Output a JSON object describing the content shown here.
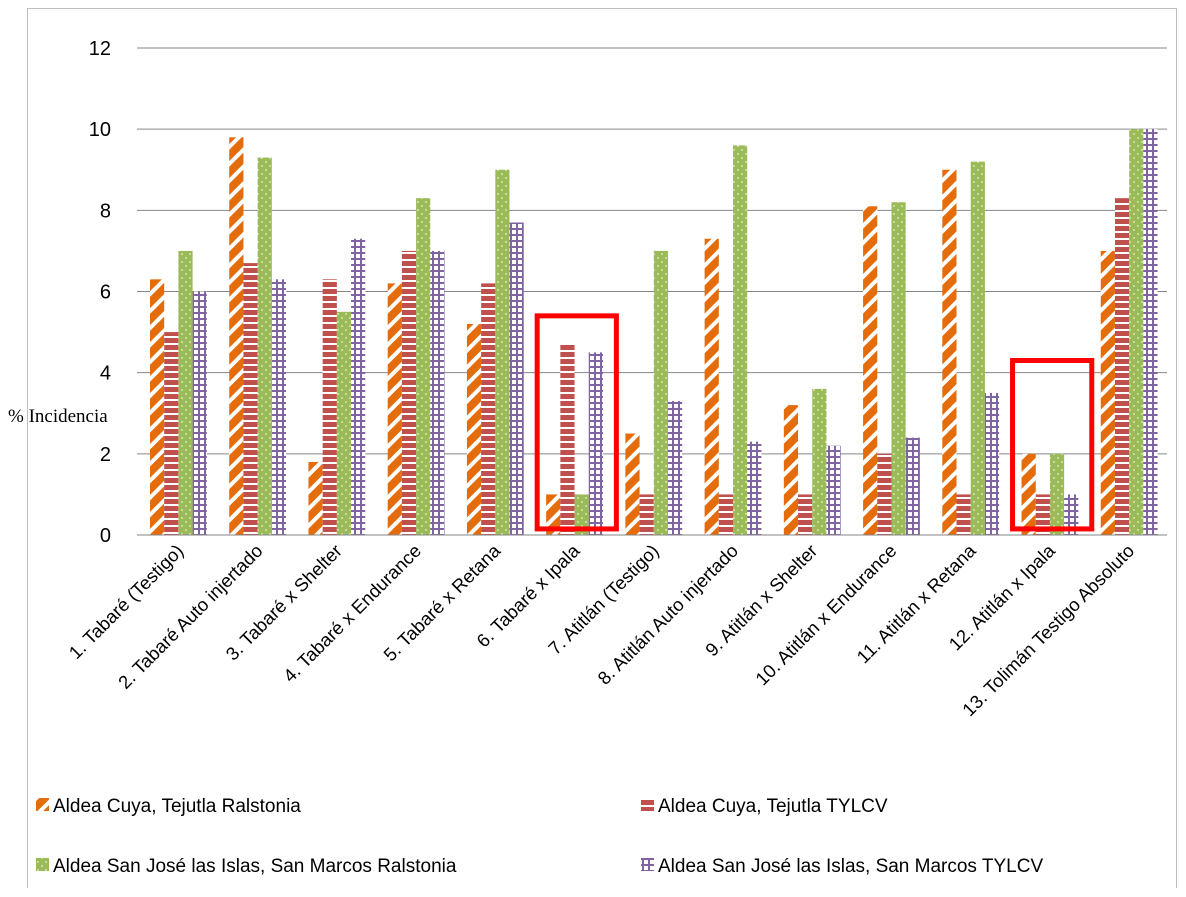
{
  "chart_data": {
    "type": "bar",
    "title": "",
    "xlabel": "",
    "ylabel": "% Incidencia",
    "ylim": [
      0,
      12
    ],
    "yticks": [
      0,
      2,
      4,
      6,
      8,
      10,
      12
    ],
    "grid": true,
    "legend_position": "bottom",
    "categories": [
      "1. Tabaré (Testigo)",
      "2. Tabaré Auto injertado",
      "3. Tabaré x Shelter",
      "4. Tabaré x Endurance",
      "5. Tabaré x Retana",
      "6. Tabaré x Ipala",
      "7. Atitlán (Testigo)",
      "8. Atitlán Auto injertado",
      "9. Atitlán x Shelter",
      "10. Atitlán x Endurance",
      "11. Atitlán x Retana",
      "12. Atitlán x Ipala",
      "13. Tolimán Testigo Absoluto"
    ],
    "series": [
      {
        "name": "Aldea Cuya, Tejutla Ralstonia",
        "color": "#e46c0a",
        "pattern": "diagonal-stripes",
        "values": [
          6.3,
          9.8,
          1.8,
          6.2,
          5.2,
          1.0,
          2.5,
          7.3,
          3.2,
          8.1,
          9.0,
          2.0,
          7.0
        ]
      },
      {
        "name": "Aldea Cuya, Tejutla TYLCV",
        "color": "#c0504d",
        "pattern": "horizontal-stripes",
        "values": [
          5.0,
          6.7,
          6.3,
          7.0,
          6.2,
          4.7,
          1.0,
          1.0,
          1.0,
          2.0,
          1.0,
          1.0,
          8.3
        ]
      },
      {
        "name": "Aldea San José las Islas, San Marcos Ralstonia",
        "color": "#9bbb59",
        "pattern": "dotted",
        "values": [
          7.0,
          9.3,
          5.5,
          8.3,
          9.0,
          1.0,
          7.0,
          9.6,
          3.6,
          8.2,
          9.2,
          2.0,
          10.0
        ]
      },
      {
        "name": "Aldea San José las Islas, San Marcos TYLCV",
        "color": "#8064a2",
        "pattern": "grid",
        "values": [
          6.0,
          6.3,
          7.3,
          7.0,
          7.7,
          4.5,
          3.3,
          2.3,
          2.2,
          2.4,
          3.5,
          1.0,
          10.0
        ]
      }
    ],
    "highlight_boxes": [
      {
        "category": "6. Tabaré x Ipala",
        "y_range": [
          0.15,
          5.4
        ],
        "color": "#ff0000"
      },
      {
        "category": "12. Atitlán x Ipala",
        "y_range": [
          0.15,
          4.3
        ],
        "color": "#ff0000"
      }
    ]
  }
}
